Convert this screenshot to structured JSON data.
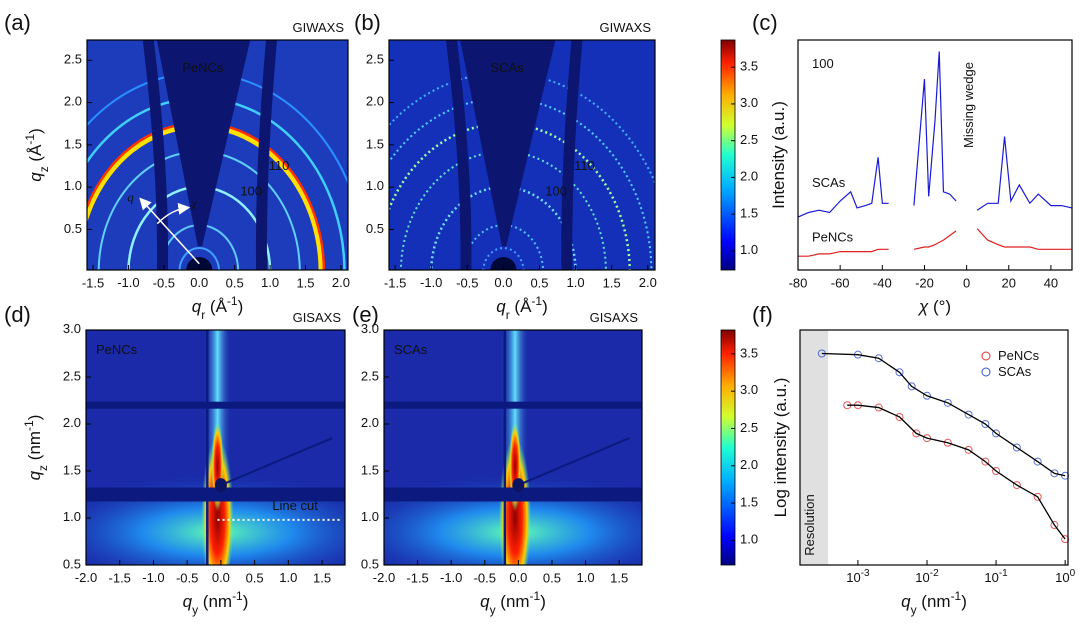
{
  "panels": {
    "a": {
      "label": "(a)",
      "technique": "GIWAXS",
      "sample": "PeNCs",
      "ring_labels": [
        "100",
        "110"
      ],
      "q_symbol": "q",
      "chi_symbol": "χ",
      "x_label": {
        "symbol": "q",
        "sub": "r",
        "unit": " (Å",
        "sup": "-1",
        "close": ")"
      },
      "y_label": {
        "symbol": "q",
        "sub": "z",
        "unit": " (Å",
        "sup": "-1",
        "close": ")"
      },
      "xlim": [
        -1.585,
        2.1
      ],
      "ylim": [
        0.02,
        2.74
      ],
      "xticks": [
        -1.5,
        {
          "value": -1,
          "label": "-1.0"
        },
        -0.5,
        {
          "value": 0,
          "label": "0.0"
        },
        0.5,
        {
          "value": 1,
          "label": "1.0"
        },
        1.5,
        {
          "value": 2,
          "label": "2.0"
        }
      ],
      "yticks": [
        0.5,
        {
          "value": 1,
          "label": "1.0"
        },
        1.5,
        {
          "value": 2,
          "label": "2.0"
        },
        2.5
      ]
    },
    "b": {
      "label": "(b)",
      "technique": "GIWAXS",
      "sample": "SCAs",
      "ring_labels": [
        "100",
        "110"
      ],
      "x_label": {
        "symbol": "q",
        "sub": "r",
        "unit": " (Å",
        "sup": "-1",
        "close": ")"
      },
      "xlim": [
        -1.585,
        2.1
      ],
      "ylim": [
        0.02,
        2.74
      ],
      "xticks": [
        -1.5,
        {
          "value": -1,
          "label": "-1.0"
        },
        -0.5,
        {
          "value": 0,
          "label": "0.0"
        },
        0.5,
        {
          "value": 1,
          "label": "1.0"
        },
        1.5,
        {
          "value": 2,
          "label": "2.0"
        }
      ],
      "yticks": [
        0.5,
        {
          "value": 1,
          "label": "1.0"
        },
        1.5,
        {
          "value": 2,
          "label": "2.0"
        },
        2.5
      ]
    },
    "colorbar_top": {
      "lim": [
        0.74,
        3.87
      ],
      "ticks": [
        {
          "value": 1,
          "label": "1.0"
        },
        1.5,
        {
          "value": 2,
          "label": "2.0"
        },
        2.5,
        {
          "value": 3,
          "label": "3.0"
        },
        3.5
      ]
    },
    "c": {
      "label": "(c)",
      "type": "line",
      "reflection": "100",
      "annotation": "Missing wedge",
      "y_label": "Intensity (a.u.)",
      "x_label": {
        "symbol": "χ",
        "unit": " (°)"
      },
      "xlim": [
        -80,
        50
      ],
      "ylim": [
        0,
        10
      ],
      "xticks": [
        -80,
        -60,
        -40,
        -20,
        0,
        20,
        40
      ],
      "x": [
        -80,
        -75,
        -70,
        -65,
        -60,
        -55,
        -52,
        -48,
        -45,
        -42,
        -40,
        -37,
        -31,
        -25,
        -20,
        -18,
        -15,
        -13,
        -11,
        -8,
        -5,
        0,
        5,
        10,
        15,
        18,
        21,
        25,
        30,
        34,
        40,
        45,
        50
      ],
      "series": [
        {
          "name": "SCAs",
          "color": "#1a1ad6",
          "values": [
            2.3,
            2.5,
            2.6,
            2.5,
            3.0,
            3.4,
            2.7,
            2.8,
            2.9,
            4.9,
            2.9,
            2.9,
            null,
            2.8,
            8.3,
            3.2,
            6.5,
            9.5,
            3.4,
            3.3,
            3.0,
            null,
            2.6,
            2.9,
            2.9,
            5.8,
            3.0,
            3.7,
            2.9,
            3.3,
            2.8,
            2.8,
            2.7
          ]
        },
        {
          "name": "PeNCs",
          "color": "#e02020",
          "values": [
            0.6,
            0.6,
            0.7,
            0.7,
            0.8,
            0.8,
            0.8,
            0.8,
            0.8,
            0.9,
            0.9,
            0.9,
            null,
            0.9,
            1.0,
            1.0,
            1.1,
            1.2,
            1.3,
            1.5,
            1.7,
            null,
            1.8,
            1.3,
            1.1,
            1.0,
            1.0,
            1.0,
            1.0,
            0.9,
            0.9,
            0.9,
            0.9
          ]
        }
      ]
    },
    "d": {
      "label": "(d)",
      "technique": "GISAXS",
      "sample": "PeNCs",
      "line_cut": {
        "label": "Line cut",
        "qz": 0.98,
        "qy": [
          -0.05,
          1.8
        ]
      },
      "x_label": {
        "symbol": "q",
        "sub": "y",
        "unit": " (nm",
        "sup": "-1",
        "close": ")"
      },
      "y_label": {
        "symbol": "q",
        "sub": "z",
        "unit": " (nm",
        "sup": "-1",
        "close": ")"
      },
      "xlim": [
        -2.0,
        1.84
      ],
      "ylim": [
        0.5,
        3.0
      ],
      "xticks": [
        {
          "value": -2,
          "label": "-2.0"
        },
        -1.5,
        {
          "value": -1,
          "label": "-1.0"
        },
        -0.5,
        {
          "value": 0,
          "label": "0.0"
        },
        0.5,
        {
          "value": 1,
          "label": "1.0"
        },
        1.5
      ],
      "yticks": [
        0.5,
        {
          "value": 1,
          "label": "1.0"
        },
        1.5,
        {
          "value": 2,
          "label": "2.0"
        },
        2.5,
        {
          "value": 3,
          "label": "3.0"
        }
      ]
    },
    "e": {
      "label": "(e)",
      "technique": "GISAXS",
      "sample": "SCAs",
      "x_label": {
        "symbol": "q",
        "sub": "y",
        "unit": " (nm",
        "sup": "-1",
        "close": ")"
      },
      "xlim": [
        -2.0,
        1.84
      ],
      "ylim": [
        0.5,
        3.0
      ],
      "xticks": [
        {
          "value": -2,
          "label": "-2.0"
        },
        -1.5,
        {
          "value": -1,
          "label": "-1.0"
        },
        -0.5,
        {
          "value": 0,
          "label": "0.0"
        },
        0.5,
        {
          "value": 1,
          "label": "1.0"
        },
        1.5
      ],
      "yticks": [
        0.5,
        {
          "value": 1,
          "label": "1.0"
        },
        1.5,
        {
          "value": 2,
          "label": "2.0"
        },
        2.5,
        {
          "value": 3,
          "label": "3.0"
        }
      ]
    },
    "colorbar_bottom": {
      "lim": [
        0.67,
        3.82
      ],
      "ticks": [
        {
          "value": 1,
          "label": "1.0"
        },
        1.5,
        {
          "value": 2,
          "label": "2.0"
        },
        2.5,
        {
          "value": 3,
          "label": "3.0"
        },
        3.5
      ]
    },
    "f": {
      "label": "(f)",
      "type": "scatter",
      "resolution_label": "Resolution",
      "resolution_limit": 0.00037,
      "y_label": "Log intensity (a.u.)",
      "x_label": {
        "symbol": "q",
        "sub": "y",
        "unit": " (nm",
        "sup": "-1",
        "close": ")"
      },
      "xscale": "log",
      "xlim": [
        0.000145,
        1.1
      ],
      "ylim": [
        0,
        10
      ],
      "fit_color": "#000000",
      "xticks": [
        {
          "value": 0.001,
          "label": "10",
          "sup": "-3"
        },
        {
          "value": 0.01,
          "label": "10",
          "sup": "-2"
        },
        {
          "value": 0.1,
          "label": "10",
          "sup": "-1"
        },
        {
          "value": 1,
          "label": "10",
          "sup": "0"
        }
      ],
      "series": [
        {
          "name": "PeNCs",
          "color": "#e03030",
          "x": [
            0.0007,
            0.001,
            0.002,
            0.004,
            0.007,
            0.01,
            0.02,
            0.04,
            0.07,
            0.1,
            0.2,
            0.4,
            0.7,
            1.0
          ],
          "values": [
            6.8,
            6.8,
            6.7,
            6.3,
            5.6,
            5.4,
            5.2,
            4.9,
            4.4,
            4.0,
            3.4,
            2.9,
            1.7,
            1.1
          ]
        },
        {
          "name": "SCAs",
          "color": "#3050d0",
          "x": [
            0.0003,
            0.001,
            0.002,
            0.004,
            0.006,
            0.01,
            0.02,
            0.04,
            0.07,
            0.1,
            0.2,
            0.4,
            0.7,
            1.0
          ],
          "values": [
            9.0,
            8.95,
            8.8,
            8.2,
            7.6,
            7.2,
            6.9,
            6.4,
            6.0,
            5.6,
            5.0,
            4.4,
            3.9,
            3.8
          ]
        }
      ]
    }
  }
}
